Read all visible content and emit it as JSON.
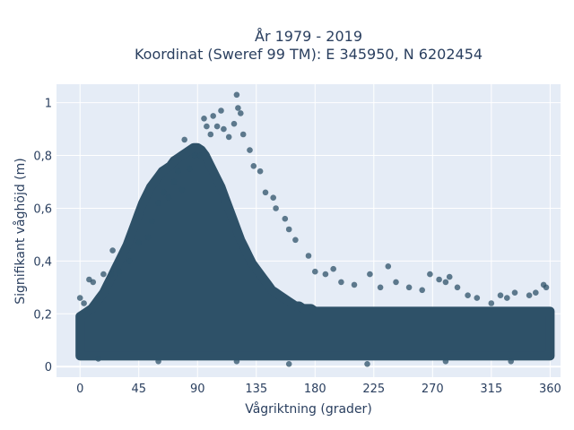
{
  "chart_data": {
    "type": "scatter",
    "title": "År 1979 - 2019",
    "subtitle": "Koordinat (Sweref 99 TM): E 345950, N 6202454",
    "xlabel": "Vågriktning (grader)",
    "ylabel": "Signifikant våghöjd (m)",
    "xlim": [
      -18,
      368
    ],
    "ylim": [
      -0.04,
      1.07
    ],
    "x_ticks": [
      0,
      45,
      90,
      135,
      180,
      225,
      270,
      315,
      360
    ],
    "x_tick_labels": [
      "0",
      "45",
      "90",
      "135",
      "180",
      "225",
      "270",
      "315",
      "360"
    ],
    "y_ticks": [
      0,
      0.2,
      0.4,
      0.6,
      0.8,
      1
    ],
    "y_tick_labels": [
      "0",
      "0,2",
      "0,4",
      "0,6",
      "0,8",
      "1"
    ],
    "grid": true,
    "background": "#e5ecf6",
    "marker_color": "#2e5168",
    "points": [
      [
        0,
        0.26
      ],
      [
        3,
        0.24
      ],
      [
        7,
        0.33
      ],
      [
        10,
        0.32
      ],
      [
        18,
        0.35
      ],
      [
        24,
        0.35
      ],
      [
        25,
        0.44
      ],
      [
        30,
        0.36
      ],
      [
        38,
        0.4
      ],
      [
        45,
        0.47
      ],
      [
        52,
        0.49
      ],
      [
        55,
        0.55
      ],
      [
        60,
        0.62
      ],
      [
        64,
        0.66
      ],
      [
        68,
        0.64
      ],
      [
        72,
        0.7
      ],
      [
        75,
        0.74
      ],
      [
        78,
        0.67
      ],
      [
        80,
        0.86
      ],
      [
        84,
        0.75
      ],
      [
        88,
        0.8
      ],
      [
        92,
        0.8
      ],
      [
        95,
        0.94
      ],
      [
        97,
        0.91
      ],
      [
        100,
        0.88
      ],
      [
        102,
        0.95
      ],
      [
        105,
        0.91
      ],
      [
        108,
        0.97
      ],
      [
        110,
        0.9
      ],
      [
        114,
        0.87
      ],
      [
        118,
        0.92
      ],
      [
        120,
        1.03
      ],
      [
        121,
        0.98
      ],
      [
        123,
        0.96
      ],
      [
        125,
        0.88
      ],
      [
        130,
        0.82
      ],
      [
        133,
        0.76
      ],
      [
        138,
        0.74
      ],
      [
        142,
        0.66
      ],
      [
        148,
        0.64
      ],
      [
        150,
        0.6
      ],
      [
        157,
        0.56
      ],
      [
        160,
        0.52
      ],
      [
        165,
        0.48
      ],
      [
        175,
        0.42
      ],
      [
        180,
        0.36
      ],
      [
        188,
        0.35
      ],
      [
        194,
        0.37
      ],
      [
        200,
        0.32
      ],
      [
        210,
        0.31
      ],
      [
        222,
        0.35
      ],
      [
        230,
        0.3
      ],
      [
        236,
        0.38
      ],
      [
        242,
        0.32
      ],
      [
        252,
        0.3
      ],
      [
        262,
        0.29
      ],
      [
        268,
        0.35
      ],
      [
        275,
        0.33
      ],
      [
        280,
        0.32
      ],
      [
        283,
        0.34
      ],
      [
        289,
        0.3
      ],
      [
        297,
        0.27
      ],
      [
        304,
        0.26
      ],
      [
        315,
        0.24
      ],
      [
        322,
        0.27
      ],
      [
        327,
        0.26
      ],
      [
        333,
        0.28
      ],
      [
        344,
        0.27
      ],
      [
        349,
        0.28
      ],
      [
        355,
        0.31
      ],
      [
        357,
        0.3
      ],
      [
        14,
        0.03
      ],
      [
        60,
        0.02
      ],
      [
        120,
        0.02
      ],
      [
        160,
        0.01
      ],
      [
        220,
        0.01
      ],
      [
        280,
        0.02
      ],
      [
        330,
        0.02
      ]
    ],
    "density_band": {
      "x_start": 0,
      "x_end": 360,
      "step": 3,
      "upper": [
        0.19,
        0.2,
        0.21,
        0.22,
        0.24,
        0.26,
        0.28,
        0.31,
        0.34,
        0.37,
        0.4,
        0.43,
        0.46,
        0.5,
        0.54,
        0.58,
        0.62,
        0.65,
        0.68,
        0.7,
        0.72,
        0.74,
        0.75,
        0.76,
        0.78,
        0.79,
        0.8,
        0.81,
        0.82,
        0.83,
        0.83,
        0.82,
        0.8,
        0.77,
        0.74,
        0.71,
        0.68,
        0.64,
        0.6,
        0.56,
        0.52,
        0.48,
        0.45,
        0.42,
        0.39,
        0.37,
        0.35,
        0.33,
        0.31,
        0.29,
        0.28,
        0.27,
        0.26,
        0.25,
        0.24,
        0.23,
        0.23,
        0.22,
        0.22,
        0.22,
        0.21,
        0.21,
        0.21,
        0.21,
        0.21,
        0.21,
        0.21,
        0.21,
        0.21,
        0.21,
        0.21,
        0.21,
        0.21,
        0.21,
        0.21,
        0.21,
        0.21,
        0.21,
        0.21,
        0.21,
        0.21,
        0.21,
        0.21,
        0.21,
        0.21,
        0.21,
        0.21,
        0.21,
        0.21,
        0.21,
        0.21,
        0.21,
        0.21,
        0.21,
        0.21,
        0.21,
        0.21,
        0.21,
        0.21,
        0.21,
        0.21,
        0.21,
        0.21,
        0.21,
        0.21,
        0.21,
        0.21,
        0.21,
        0.21,
        0.21,
        0.21,
        0.21,
        0.21,
        0.21,
        0.21,
        0.21,
        0.21,
        0.21,
        0.21,
        0.21,
        0.21
      ],
      "lower": 0.04
    }
  }
}
